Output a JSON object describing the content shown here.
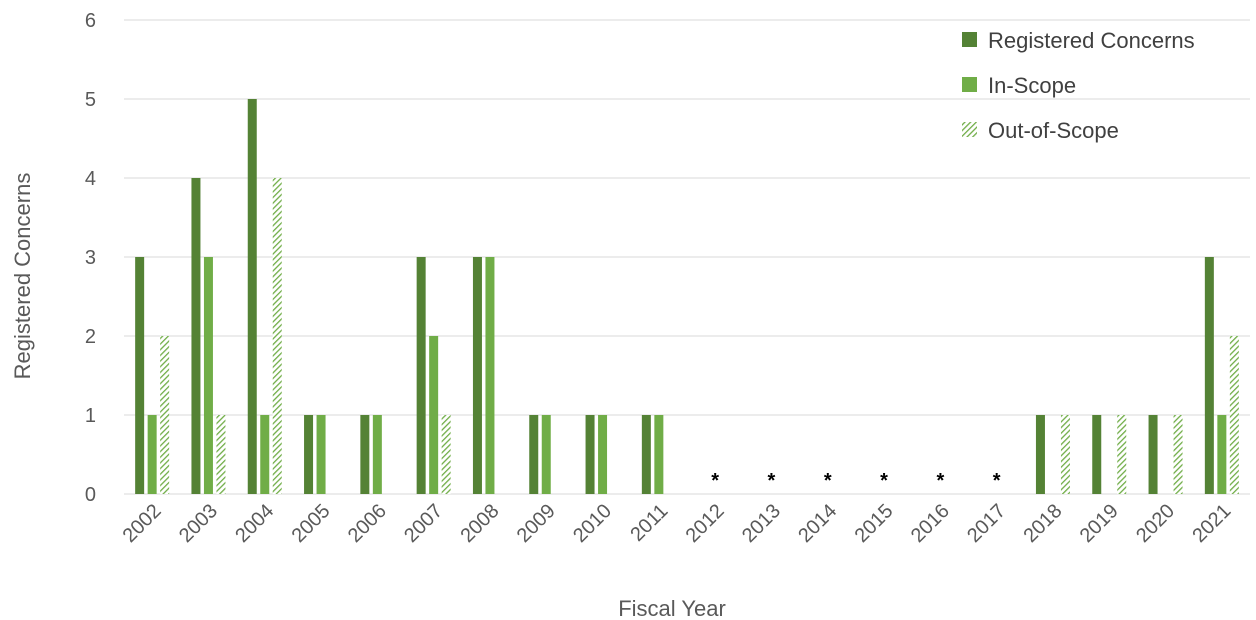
{
  "chart_data": {
    "type": "bar",
    "title": "",
    "xlabel": "Fiscal Year",
    "ylabel": "Registered Concerns",
    "ylim": [
      0,
      6
    ],
    "yticks": [
      0,
      1,
      2,
      3,
      4,
      5,
      6
    ],
    "grid": true,
    "legend_position": "top-right",
    "categories": [
      "2002",
      "2003",
      "2004",
      "2005",
      "2006",
      "2007",
      "2008",
      "2009",
      "2010",
      "2011",
      "2012",
      "2013",
      "2014",
      "2015",
      "2016",
      "2017",
      "2018",
      "2019",
      "2020",
      "2021"
    ],
    "series": [
      {
        "name": "Registered Concerns",
        "color": "#548235",
        "pattern": "solid",
        "values": [
          3,
          4,
          5,
          1,
          1,
          3,
          3,
          1,
          1,
          1,
          0,
          0,
          0,
          0,
          0,
          0,
          1,
          1,
          1,
          3
        ]
      },
      {
        "name": "In-Scope",
        "color": "#70ad47",
        "pattern": "solid",
        "values": [
          1,
          3,
          1,
          1,
          1,
          2,
          3,
          1,
          1,
          1,
          0,
          0,
          0,
          0,
          0,
          0,
          0,
          0,
          0,
          1
        ]
      },
      {
        "name": "Out-of-Scope",
        "color": "#70ad47",
        "pattern": "diagonal-hatch",
        "values": [
          2,
          1,
          4,
          0,
          0,
          1,
          0,
          0,
          0,
          0,
          0,
          0,
          0,
          0,
          0,
          0,
          1,
          1,
          1,
          2
        ]
      }
    ],
    "annotations": [
      {
        "category": "2012",
        "text": "*"
      },
      {
        "category": "2013",
        "text": "*"
      },
      {
        "category": "2014",
        "text": "*"
      },
      {
        "category": "2015",
        "text": "*"
      },
      {
        "category": "2016",
        "text": "*"
      },
      {
        "category": "2017",
        "text": "*"
      }
    ]
  }
}
